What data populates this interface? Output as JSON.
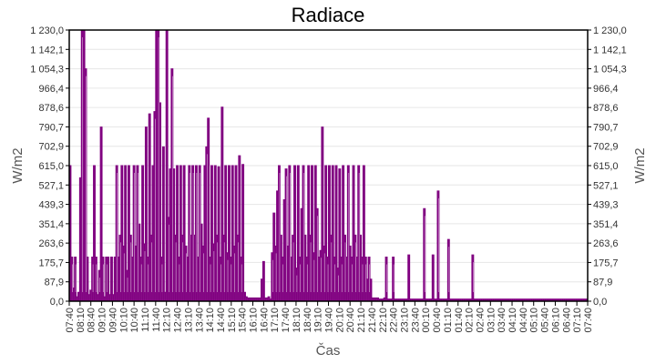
{
  "chart_data": {
    "type": "bar",
    "title": "Radiace",
    "xlabel": "Čas",
    "ylabel": "W/m2",
    "ylabel_right": "W/m2",
    "ylim": [
      0,
      1230
    ],
    "yticks": [
      "0,0",
      "87,9",
      "175,7",
      "263,6",
      "351,4",
      "439,3",
      "527,1",
      "615,0",
      "702,9",
      "790,7",
      "878,6",
      "966,4",
      "1 054,3",
      "1 142,1",
      "1 230,0"
    ],
    "ytick_values": [
      0,
      87.9,
      175.7,
      263.6,
      351.4,
      439.3,
      527.1,
      615.0,
      702.9,
      790.7,
      878.6,
      966.4,
      1054.3,
      1142.1,
      1230.0
    ],
    "xticks": [
      "07:40",
      "08:10",
      "08:40",
      "09:10",
      "09:40",
      "10:10",
      "10:40",
      "11:10",
      "11:40",
      "12:10",
      "12:40",
      "13:10",
      "13:40",
      "14:10",
      "14:40",
      "15:10",
      "15:40",
      "16:10",
      "16:40",
      "17:10",
      "17:40",
      "18:10",
      "18:40",
      "19:10",
      "19:40",
      "20:10",
      "20:40",
      "21:10",
      "21:40",
      "22:10",
      "22:40",
      "23:10",
      "23:40",
      "00:10",
      "00:40",
      "01:10",
      "01:40",
      "02:10",
      "02:40",
      "03:10",
      "03:40",
      "04:10",
      "04:40",
      "05:10",
      "05:40",
      "06:10",
      "06:40",
      "07:10",
      "07:40"
    ],
    "grid": true,
    "legend": "none",
    "color": "#800080",
    "series": [
      {
        "name": "Radiace",
        "x_minutes_from_start": "every 5 minutes from 07:40",
        "values": [
          615,
          200,
          60,
          200,
          20,
          40,
          560,
          1230,
          1230,
          1054,
          200,
          30,
          50,
          200,
          615,
          200,
          30,
          140,
          790,
          200,
          20,
          200,
          200,
          30,
          200,
          30,
          200,
          615,
          200,
          300,
          615,
          250,
          615,
          140,
          615,
          300,
          200,
          615,
          250,
          615,
          350,
          200,
          615,
          260,
          790,
          200,
          850,
          300,
          615,
          860,
          1230,
          1230,
          900,
          200,
          700,
          40,
          1230,
          380,
          600,
          1054,
          600,
          300,
          615,
          200,
          615,
          300,
          615,
          250,
          200,
          615,
          300,
          615,
          300,
          615,
          200,
          615,
          350,
          250,
          615,
          700,
          830,
          200,
          615,
          260,
          615,
          300,
          610,
          200,
          880,
          300,
          615,
          220,
          615,
          200,
          615,
          250,
          615,
          300,
          660,
          200,
          620,
          40,
          20,
          15,
          15,
          15,
          15,
          15,
          15,
          15,
          15,
          100,
          180,
          15,
          15,
          20,
          10,
          220,
          400,
          250,
          500,
          615,
          300,
          200,
          460,
          600,
          250,
          615,
          200,
          300,
          615,
          150,
          615,
          200,
          420,
          615,
          300,
          200,
          615,
          300,
          615,
          220,
          615,
          420,
          200,
          230,
          790,
          250,
          615,
          200,
          615,
          300,
          615,
          200,
          615,
          150,
          600,
          200,
          615,
          300,
          200,
          615,
          250,
          200,
          615,
          300,
          200,
          615,
          300,
          200,
          615,
          200,
          100,
          200,
          100,
          15,
          15,
          15,
          15,
          10,
          10,
          10,
          15,
          200,
          10,
          10,
          10,
          200,
          10,
          10,
          10,
          10,
          10,
          10,
          10,
          10,
          210,
          10,
          10,
          10,
          10,
          10,
          10,
          10,
          10,
          420,
          10,
          10,
          10,
          10,
          210,
          10,
          10,
          500,
          10,
          10,
          10,
          10,
          10,
          280,
          10,
          10,
          10,
          10,
          10,
          10,
          10,
          10,
          10,
          10,
          10,
          10,
          10,
          210,
          10,
          10,
          10,
          10,
          10,
          10,
          10,
          10,
          10,
          10,
          10,
          10,
          10,
          10,
          10,
          10,
          10,
          10,
          10,
          10,
          10,
          10,
          10,
          10,
          10,
          10,
          10,
          10,
          10,
          10,
          10,
          10,
          10,
          10,
          10,
          10,
          10,
          10,
          10,
          10,
          10,
          10,
          10,
          10,
          10,
          10,
          10,
          10,
          10,
          10,
          10,
          10,
          10,
          10,
          10,
          10,
          10,
          10,
          10,
          10,
          10,
          10,
          10,
          10,
          10,
          10
        ]
      }
    ]
  }
}
